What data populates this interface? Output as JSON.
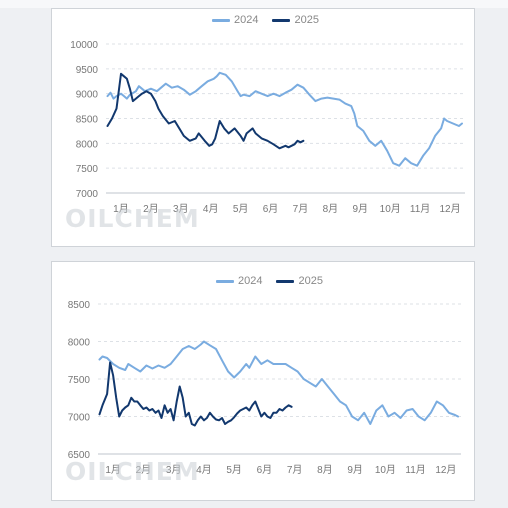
{
  "colors": {
    "s2024": "#7aace0",
    "s2025": "#12386e",
    "grid": "#dde1e6",
    "watermark": "#c8cdd4"
  },
  "watermark": "OILCHEM",
  "chart_data": [
    {
      "type": "line",
      "ylim": [
        7000,
        10000
      ],
      "yticks": [
        "10000",
        "9500",
        "9000",
        "8500",
        "8000",
        "7500",
        "7000"
      ],
      "yticks_values": [
        10000,
        9500,
        9000,
        8500,
        8000,
        7500,
        7000
      ],
      "categories": [
        "1月",
        "2月",
        "3月",
        "4月",
        "5月",
        "6月",
        "7月",
        "8月",
        "9月",
        "10月",
        "11月",
        "12月"
      ],
      "grid": true,
      "legend_position": "top",
      "series": [
        {
          "name": "2024",
          "x": [
            0.05,
            0.15,
            0.25,
            0.35,
            0.5,
            0.6,
            0.7,
            0.8,
            1.0,
            1.1,
            1.3,
            1.5,
            1.7,
            1.9,
            2.0,
            2.2,
            2.4,
            2.6,
            2.8,
            3.0,
            3.2,
            3.4,
            3.6,
            3.7,
            3.8,
            4.0,
            4.2,
            4.4,
            4.5,
            4.6,
            4.8,
            5.0,
            5.2,
            5.4,
            5.6,
            5.8,
            6.0,
            6.2,
            6.4,
            6.6,
            6.8,
            7.0,
            7.2,
            7.4,
            7.6,
            7.8,
            8.0,
            8.2,
            8.3,
            8.4,
            8.6,
            8.8,
            9.0,
            9.2,
            9.4,
            9.6,
            9.8,
            10.0,
            10.2,
            10.4,
            10.6,
            10.8,
            11.0,
            11.2,
            11.3,
            11.4,
            11.6,
            11.8,
            11.9
          ],
          "y": [
            8950,
            9020,
            8900,
            8950,
            9000,
            8950,
            8900,
            8980,
            9050,
            9150,
            9050,
            9100,
            9050,
            9150,
            9200,
            9120,
            9150,
            9080,
            8980,
            9050,
            9150,
            9250,
            9300,
            9350,
            9420,
            9380,
            9250,
            9050,
            8950,
            8980,
            8950,
            9050,
            9000,
            8950,
            9000,
            8950,
            9020,
            9080,
            9180,
            9120,
            8980,
            8850,
            8900,
            8920,
            8900,
            8880,
            8800,
            8750,
            8600,
            8350,
            8250,
            8050,
            7950,
            8050,
            7850,
            7600,
            7550,
            7700,
            7600,
            7550,
            7750,
            7900,
            8150,
            8300,
            8500,
            8450,
            8400,
            8350,
            8400
          ]
        },
        {
          "name": "2025",
          "x": [
            0.05,
            0.2,
            0.35,
            0.5,
            0.6,
            0.7,
            0.8,
            0.9,
            1.0,
            1.1,
            1.2,
            1.35,
            1.5,
            1.65,
            1.75,
            1.9,
            2.1,
            2.3,
            2.5,
            2.6,
            2.7,
            2.8,
            3.0,
            3.1,
            3.3,
            3.45,
            3.55,
            3.65,
            3.8,
            3.95,
            4.1,
            4.3,
            4.5,
            4.6,
            4.7,
            4.8,
            4.9,
            5.0,
            5.2,
            5.4,
            5.6,
            5.8,
            6.0,
            6.1,
            6.2,
            6.3,
            6.4,
            6.5,
            6.6
          ],
          "y": [
            8350,
            8500,
            8700,
            9400,
            9350,
            9300,
            9100,
            8850,
            8900,
            8950,
            9000,
            9050,
            9000,
            8850,
            8700,
            8550,
            8400,
            8450,
            8250,
            8150,
            8100,
            8050,
            8100,
            8200,
            8050,
            7950,
            7980,
            8100,
            8450,
            8300,
            8200,
            8300,
            8150,
            8050,
            8200,
            8250,
            8300,
            8200,
            8100,
            8050,
            7980,
            7900,
            7950,
            7920,
            7950,
            7980,
            8050,
            8020,
            8050
          ]
        }
      ]
    },
    {
      "type": "line",
      "ylim": [
        6500,
        8500
      ],
      "yticks": [
        "8500",
        "8000",
        "7500",
        "7000",
        "6500"
      ],
      "yticks_values": [
        8500,
        8000,
        7500,
        7000,
        6500
      ],
      "categories": [
        "1月",
        "2月",
        "3月",
        "4月",
        "5月",
        "6月",
        "7月",
        "8月",
        "9月",
        "10月",
        "11月",
        "12月"
      ],
      "grid": true,
      "legend_position": "top",
      "series": [
        {
          "name": "2024",
          "x": [
            0.05,
            0.15,
            0.3,
            0.5,
            0.7,
            0.9,
            1.0,
            1.2,
            1.4,
            1.6,
            1.8,
            2.0,
            2.2,
            2.4,
            2.6,
            2.8,
            3.0,
            3.2,
            3.4,
            3.5,
            3.7,
            3.9,
            4.1,
            4.3,
            4.5,
            4.7,
            4.9,
            5.0,
            5.2,
            5.4,
            5.6,
            5.8,
            6.0,
            6.2,
            6.4,
            6.6,
            6.8,
            7.0,
            7.2,
            7.4,
            7.6,
            7.8,
            8.0,
            8.2,
            8.4,
            8.6,
            8.8,
            9.0,
            9.2,
            9.4,
            9.6,
            9.8,
            10.0,
            10.2,
            10.4,
            10.6,
            10.8,
            11.0,
            11.2,
            11.4,
            11.6,
            11.8,
            11.9
          ],
          "y": [
            7760,
            7800,
            7780,
            7700,
            7650,
            7620,
            7700,
            7650,
            7600,
            7680,
            7640,
            7680,
            7650,
            7700,
            7800,
            7900,
            7940,
            7900,
            7960,
            8000,
            7950,
            7900,
            7750,
            7600,
            7520,
            7600,
            7700,
            7650,
            7800,
            7700,
            7750,
            7700,
            7700,
            7700,
            7650,
            7600,
            7500,
            7450,
            7400,
            7500,
            7400,
            7300,
            7200,
            7150,
            7000,
            6950,
            7050,
            6900,
            7080,
            7150,
            7000,
            7050,
            6980,
            7080,
            7100,
            7000,
            6950,
            7050,
            7200,
            7150,
            7050,
            7020,
            7000
          ]
        },
        {
          "name": "2025",
          "x": [
            0.05,
            0.15,
            0.3,
            0.4,
            0.5,
            0.6,
            0.7,
            0.8,
            0.9,
            1.0,
            1.1,
            1.2,
            1.3,
            1.4,
            1.5,
            1.6,
            1.7,
            1.8,
            1.9,
            2.0,
            2.1,
            2.2,
            2.3,
            2.4,
            2.5,
            2.6,
            2.7,
            2.8,
            2.9,
            3.0,
            3.1,
            3.2,
            3.3,
            3.4,
            3.5,
            3.6,
            3.7,
            3.8,
            3.9,
            4.0,
            4.1,
            4.2,
            4.3,
            4.4,
            4.5,
            4.6,
            4.7,
            4.8,
            4.9,
            5.0,
            5.1,
            5.2,
            5.3,
            5.4,
            5.5,
            5.6,
            5.7,
            5.8,
            5.9,
            6.0,
            6.1,
            6.2,
            6.3,
            6.4
          ],
          "y": [
            7030,
            7150,
            7300,
            7720,
            7550,
            7250,
            7000,
            7080,
            7120,
            7150,
            7250,
            7200,
            7200,
            7150,
            7100,
            7120,
            7080,
            7100,
            7050,
            7080,
            6980,
            7150,
            7050,
            7100,
            6950,
            7200,
            7400,
            7250,
            7000,
            7050,
            6900,
            6880,
            6950,
            7000,
            6950,
            6980,
            7050,
            7000,
            6960,
            6950,
            6980,
            6900,
            6930,
            6950,
            6990,
            7040,
            7080,
            7100,
            7120,
            7080,
            7150,
            7200,
            7100,
            7000,
            7050,
            7000,
            6980,
            7050,
            7050,
            7100,
            7080,
            7120,
            7150,
            7130
          ]
        }
      ]
    }
  ]
}
